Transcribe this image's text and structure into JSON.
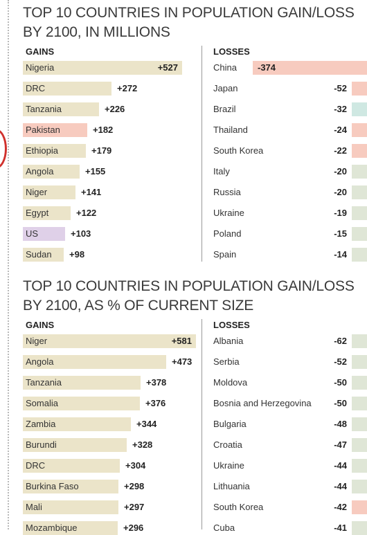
{
  "colors": {
    "gain_default": "#ebe4c9",
    "highlight_pink": "#f7cbbf",
    "highlight_purple": "#dfd0e8",
    "highlight_teal": "#cfe8e2",
    "loss_green": "#dfe6d6"
  },
  "chart_data": [
    {
      "type": "bar",
      "title": "TOP 10 COUNTRIES IN POPULATION GAIN/LOSS BY 2100, IN MILLIONS",
      "gains_header": "GAINS",
      "losses_header": "LOSSES",
      "gains": [
        {
          "name": "Nigeria",
          "value": 527,
          "label": "+527"
        },
        {
          "name": "DRC",
          "value": 272,
          "label": "+272"
        },
        {
          "name": "Tanzania",
          "value": 226,
          "label": "+226"
        },
        {
          "name": "Pakistan",
          "value": 182,
          "label": "+182",
          "color": "pink"
        },
        {
          "name": "Ethiopia",
          "value": 179,
          "label": "+179"
        },
        {
          "name": "Angola",
          "value": 155,
          "label": "+155"
        },
        {
          "name": "Niger",
          "value": 141,
          "label": "+141"
        },
        {
          "name": "Egypt",
          "value": 122,
          "label": "+122"
        },
        {
          "name": "US",
          "value": 103,
          "label": "+103",
          "color": "purple"
        },
        {
          "name": "Sudan",
          "value": 98,
          "label": "+98"
        }
      ],
      "losses": [
        {
          "name": "China",
          "value": -374,
          "label": "-374",
          "color": "pink"
        },
        {
          "name": "Japan",
          "value": -52,
          "label": "-52",
          "color": "pink"
        },
        {
          "name": "Brazil",
          "value": -32,
          "label": "-32",
          "color": "teal"
        },
        {
          "name": "Thailand",
          "value": -24,
          "label": "-24",
          "color": "pink"
        },
        {
          "name": "South Korea",
          "value": -22,
          "label": "-22",
          "color": "pink"
        },
        {
          "name": "Italy",
          "value": -20,
          "label": "-20",
          "color": "green"
        },
        {
          "name": "Russia",
          "value": -20,
          "label": "-20",
          "color": "green"
        },
        {
          "name": "Ukraine",
          "value": -19,
          "label": "-19",
          "color": "green"
        },
        {
          "name": "Poland",
          "value": -15,
          "label": "-15",
          "color": "green"
        },
        {
          "name": "Spain",
          "value": -14,
          "label": "-14",
          "color": "green"
        }
      ]
    },
    {
      "type": "bar",
      "title": "TOP 10 COUNTRIES IN POPULATION GAIN/LOSS BY 2100, AS % OF CURRENT SIZE",
      "gains_header": "GAINS",
      "losses_header": "LOSSES",
      "gains": [
        {
          "name": "Niger",
          "value": 581,
          "label": "+581"
        },
        {
          "name": "Angola",
          "value": 473,
          "label": "+473"
        },
        {
          "name": "Tanzania",
          "value": 378,
          "label": "+378"
        },
        {
          "name": "Somalia",
          "value": 376,
          "label": "+376"
        },
        {
          "name": "Zambia",
          "value": 344,
          "label": "+344"
        },
        {
          "name": "Burundi",
          "value": 328,
          "label": "+328"
        },
        {
          "name": "DRC",
          "value": 304,
          "label": "+304"
        },
        {
          "name": "Burkina Faso",
          "value": 298,
          "label": "+298"
        },
        {
          "name": "Mali",
          "value": 297,
          "label": "+297"
        },
        {
          "name": "Mozambique",
          "value": 296,
          "label": "+296"
        }
      ],
      "losses": [
        {
          "name": "Albania",
          "value": -62,
          "label": "-62",
          "color": "green"
        },
        {
          "name": "Serbia",
          "value": -52,
          "label": "-52",
          "color": "green"
        },
        {
          "name": "Moldova",
          "value": -50,
          "label": "-50",
          "color": "green"
        },
        {
          "name": "Bosnia and Herzegovina",
          "value": -50,
          "label": "-50",
          "color": "green"
        },
        {
          "name": "Bulgaria",
          "value": -48,
          "label": "-48",
          "color": "green"
        },
        {
          "name": "Croatia",
          "value": -47,
          "label": "-47",
          "color": "green"
        },
        {
          "name": "Ukraine",
          "value": -44,
          "label": "-44",
          "color": "green"
        },
        {
          "name": "Lithuania",
          "value": -44,
          "label": "-44",
          "color": "green"
        },
        {
          "name": "South Korea",
          "value": -42,
          "label": "-42",
          "color": "pink"
        },
        {
          "name": "Cuba",
          "value": -41,
          "label": "-41",
          "color": "green"
        }
      ]
    }
  ]
}
